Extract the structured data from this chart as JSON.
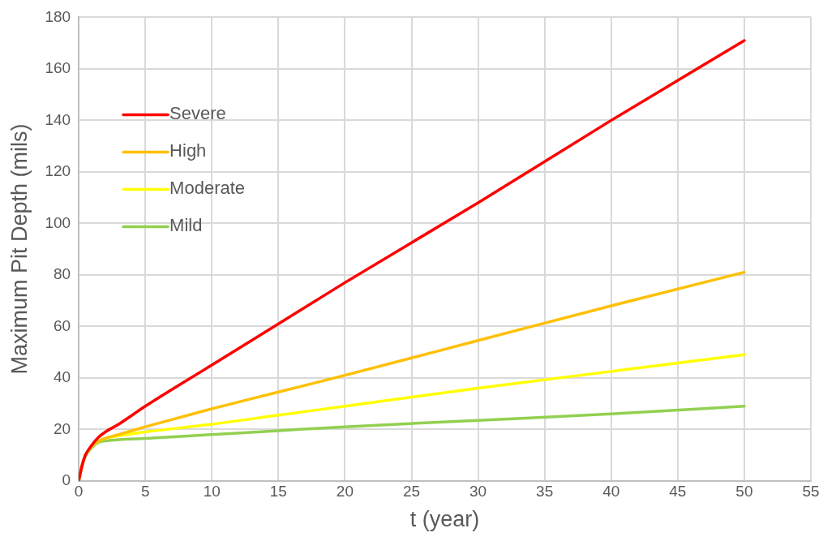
{
  "chart_data": {
    "type": "line",
    "xlabel": "t (year)",
    "ylabel": "Maximum Pit Depth (mils)",
    "x": [
      0,
      0.25,
      0.5,
      1,
      1.5,
      2,
      3,
      5,
      10,
      15,
      20,
      30,
      40,
      50
    ],
    "series": [
      {
        "name": "Severe",
        "color": "#ff0000",
        "values": [
          0,
          6,
          10,
          14,
          17,
          19,
          22,
          29,
          45,
          61,
          77,
          108,
          140,
          171
        ]
      },
      {
        "name": "High",
        "color": "#ffc000",
        "values": [
          0,
          6,
          10,
          13.5,
          15.5,
          16.5,
          18,
          21,
          28,
          34.5,
          41,
          54.5,
          68,
          81
        ]
      },
      {
        "name": "Moderate",
        "color": "#ffff00",
        "values": [
          null,
          null,
          null,
          13.5,
          15.5,
          16.5,
          17.5,
          19,
          22,
          25.5,
          29,
          36,
          42.5,
          49
        ]
      },
      {
        "name": "Mild",
        "color": "#92d050",
        "values": [
          0,
          5.5,
          9.5,
          13,
          15,
          15.5,
          16,
          16.5,
          18,
          19.5,
          21,
          23.5,
          26,
          29
        ]
      }
    ],
    "xlim": [
      0,
      55
    ],
    "xticks": [
      0,
      5,
      10,
      15,
      20,
      25,
      30,
      35,
      40,
      45,
      50,
      55
    ],
    "ylim": [
      0,
      180
    ],
    "yticks": [
      0,
      20,
      40,
      60,
      80,
      100,
      120,
      140,
      160,
      180
    ],
    "grid": true,
    "legend": "top left",
    "marker": "none",
    "line_style": "solid"
  }
}
